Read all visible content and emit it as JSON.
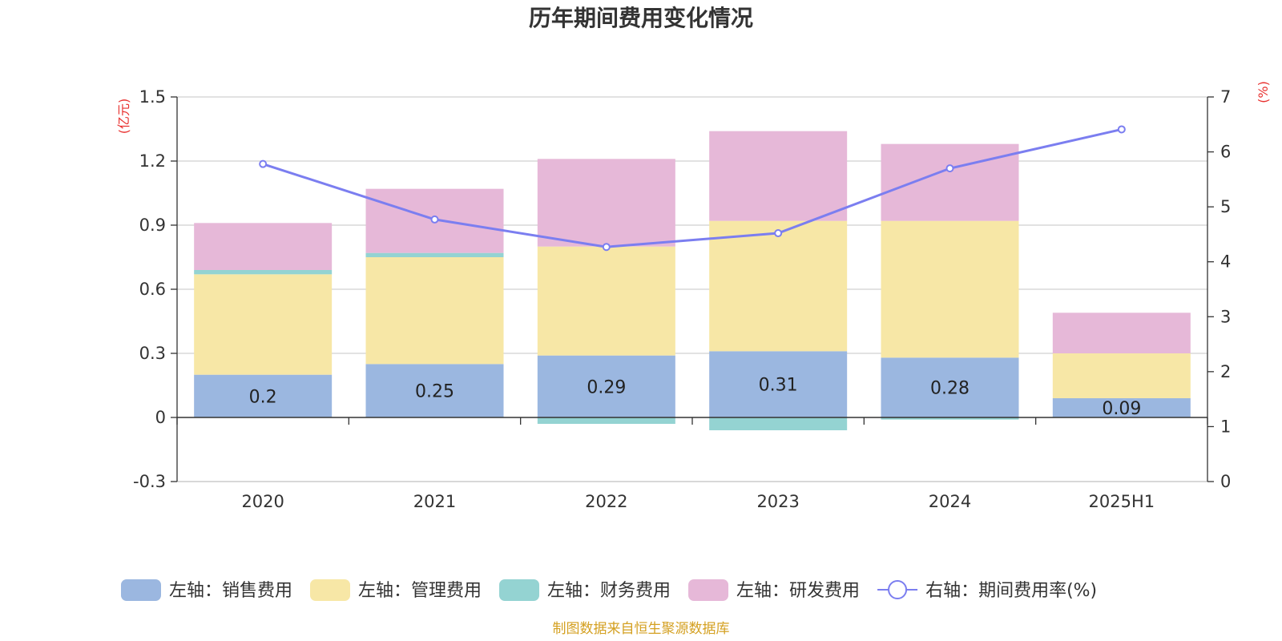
{
  "chart_data": {
    "type": "bar",
    "title": "历年期间费用变化情况",
    "categories": [
      "2020",
      "2021",
      "2022",
      "2023",
      "2024",
      "2025H1"
    ],
    "left_axis": {
      "unit": "(亿元)",
      "range": [
        -0.3,
        1.5
      ],
      "ticks": [
        "-0.3",
        "0",
        "0.3",
        "0.6",
        "0.9",
        "1.2",
        "1.5"
      ],
      "tick_values": [
        -0.3,
        0,
        0.3,
        0.6,
        0.9,
        1.2,
        1.5
      ]
    },
    "right_axis": {
      "unit": "(%)",
      "range": [
        0,
        7
      ],
      "ticks": [
        "0",
        "1",
        "2",
        "3",
        "4",
        "5",
        "6",
        "7"
      ],
      "tick_values": [
        0,
        1,
        2,
        3,
        4,
        5,
        6,
        7
      ]
    },
    "series": [
      {
        "name": "左轴：销售费用",
        "type": "stacked-bar",
        "axis": "left",
        "color": "#9bb7e0",
        "values": [
          0.2,
          0.25,
          0.29,
          0.31,
          0.28,
          0.09
        ],
        "labels": [
          "0.2",
          "0.25",
          "0.29",
          "0.31",
          "0.28",
          "0.09"
        ]
      },
      {
        "name": "左轴：管理费用",
        "type": "stacked-bar",
        "axis": "left",
        "color": "#f7e7a6",
        "values": [
          0.47,
          0.5,
          0.51,
          0.61,
          0.64,
          0.21
        ]
      },
      {
        "name": "左轴：财务费用",
        "type": "stacked-bar",
        "axis": "left",
        "color": "#94d3d2",
        "values": [
          0.02,
          0.02,
          -0.03,
          -0.06,
          -0.01,
          0.0
        ]
      },
      {
        "name": "左轴：研发费用",
        "type": "stacked-bar",
        "axis": "left",
        "color": "#e6b8d8",
        "values": [
          0.22,
          0.3,
          0.41,
          0.42,
          0.36,
          0.19
        ]
      },
      {
        "name": "右轴：期间费用率(%)",
        "type": "line",
        "axis": "right",
        "color": "#7b7ef0",
        "values": [
          5.78,
          4.77,
          4.27,
          4.52,
          5.7,
          6.41
        ]
      }
    ],
    "grid": true,
    "legend_position": "bottom"
  },
  "source": "制图数据来自恒生聚源数据库"
}
